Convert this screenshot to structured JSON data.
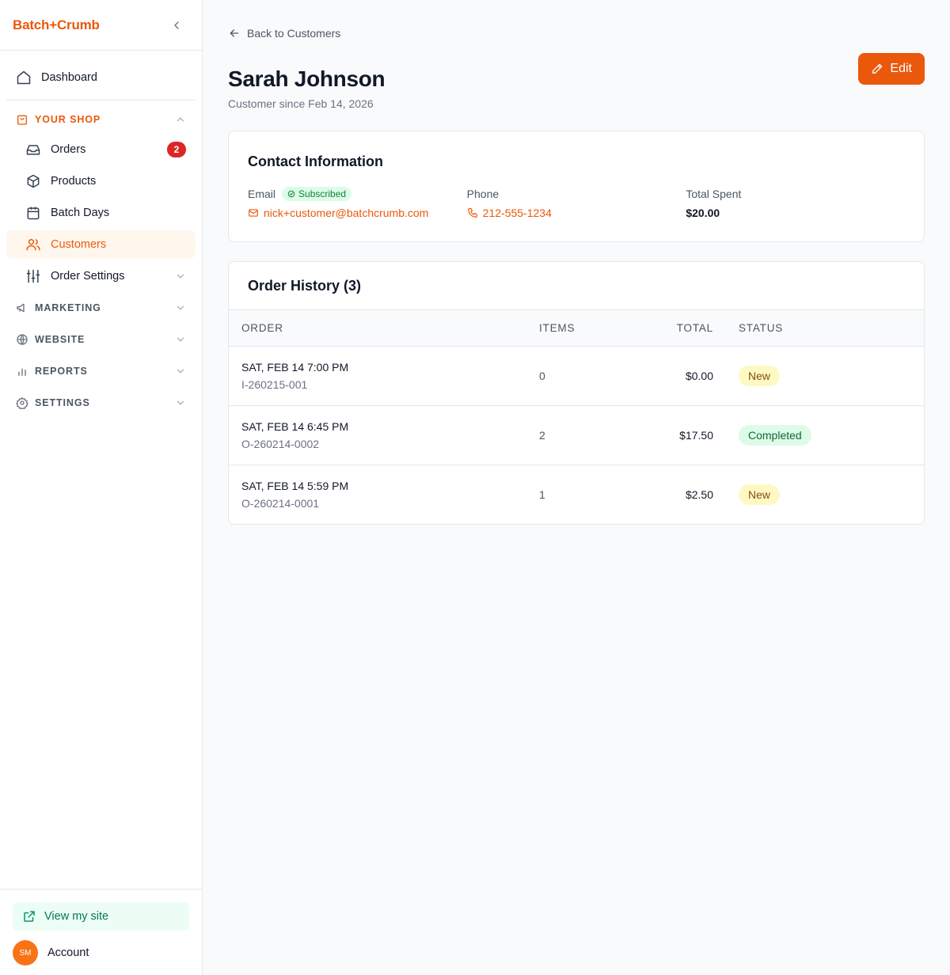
{
  "sidebar": {
    "brand": "Batch+Crumb",
    "dashboard_label": "Dashboard",
    "your_shop": {
      "label": "YOUR SHOP",
      "items": [
        {
          "label": "Orders",
          "icon": "inbox-icon",
          "badge": "2"
        },
        {
          "label": "Products",
          "icon": "box-icon"
        },
        {
          "label": "Batch Days",
          "icon": "calendar-icon"
        },
        {
          "label": "Customers",
          "icon": "users-icon",
          "active": true
        },
        {
          "label": "Order Settings",
          "icon": "sliders-icon"
        }
      ]
    },
    "sections": [
      {
        "label": "MARKETING",
        "icon": "megaphone-icon"
      },
      {
        "label": "WEBSITE",
        "icon": "globe-icon"
      },
      {
        "label": "REPORTS",
        "icon": "bar-chart-icon"
      },
      {
        "label": "SETTINGS",
        "icon": "gear-icon"
      }
    ],
    "view_site_label": "View my site",
    "account_label": "Account",
    "avatar_initials": "SM"
  },
  "main": {
    "back_label": "Back to Customers",
    "title": "Sarah Johnson",
    "subtitle": "Customer since Feb 14, 2026",
    "edit_label": "Edit",
    "contact": {
      "title": "Contact Information",
      "email_label": "Email",
      "subscribed_label": "Subscribed",
      "email": "nick+customer@batchcrumb.com",
      "phone_label": "Phone",
      "phone": "212-555-1234",
      "total_label": "Total Spent",
      "total": "$20.00"
    },
    "history": {
      "title": "Order History (3)",
      "columns": {
        "order": "ORDER",
        "items": "ITEMS",
        "total": "TOTAL",
        "status": "STATUS"
      },
      "rows": [
        {
          "date": "SAT, FEB 14 7:00 PM",
          "id": "I-260215-001",
          "items": "0",
          "total": "$0.00",
          "status": "New"
        },
        {
          "date": "SAT, FEB 14 6:45 PM",
          "id": "O-260214-0002",
          "items": "2",
          "total": "$17.50",
          "status": "Completed"
        },
        {
          "date": "SAT, FEB 14 5:59 PM",
          "id": "O-260214-0001",
          "items": "1",
          "total": "$2.50",
          "status": "New"
        }
      ]
    }
  },
  "colors": {
    "accent": "#ea580c",
    "status_new_bg": "#fef9c3",
    "status_new_fg": "#854d0e",
    "status_completed_bg": "#dcfce7",
    "status_completed_fg": "#166534"
  }
}
